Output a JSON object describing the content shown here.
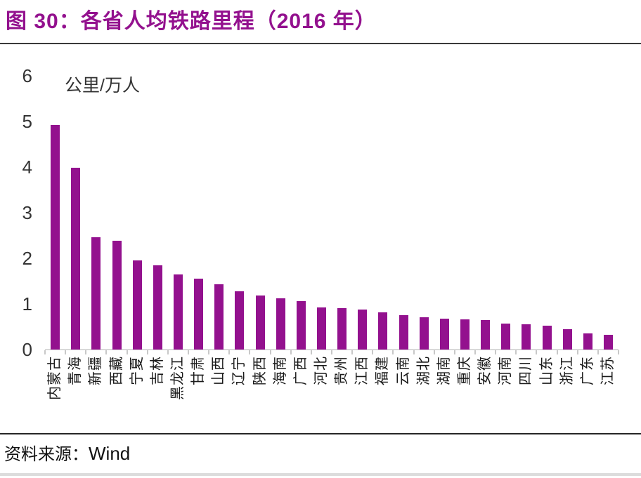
{
  "figure": {
    "title": "图 30：各省人均铁路里程（2016 年）",
    "source": {
      "label": "资料来源：",
      "value": "Wind"
    }
  },
  "chart_data": {
    "type": "bar",
    "title": "各省人均铁路里程（2016年）",
    "unit_label": "公里/万人",
    "categories": [
      "内蒙古",
      "青海",
      "新疆",
      "西藏",
      "宁夏",
      "吉林",
      "黑龙江",
      "甘肃",
      "山西",
      "辽宁",
      "陕西",
      "海南",
      "广西",
      "河北",
      "贵州",
      "江西",
      "福建",
      "云南",
      "湖北",
      "湖南",
      "重庆",
      "安徽",
      "河南",
      "四川",
      "山东",
      "浙江",
      "广东",
      "江苏"
    ],
    "values": [
      4.93,
      3.99,
      2.46,
      2.39,
      1.96,
      1.85,
      1.64,
      1.56,
      1.43,
      1.27,
      1.19,
      1.12,
      1.06,
      0.92,
      0.91,
      0.87,
      0.82,
      0.76,
      0.71,
      0.67,
      0.66,
      0.65,
      0.57,
      0.56,
      0.53,
      0.45,
      0.35,
      0.33
    ],
    "xlabel": "",
    "ylabel": "公里/万人",
    "ylim": [
      0,
      6
    ],
    "yticks": [
      0,
      1,
      2,
      3,
      4,
      5,
      6
    ],
    "grid": "off",
    "legend": "none",
    "bar_color": "#93118E"
  },
  "colors": {
    "title": "#93118E",
    "bar": "#93118E",
    "axis_line": "#D9D9D9",
    "tick": "#C8C8C8",
    "title_rule": "#3A3A3A",
    "source_rule": "#262626",
    "bottom_rule": "#DCDCDC"
  }
}
